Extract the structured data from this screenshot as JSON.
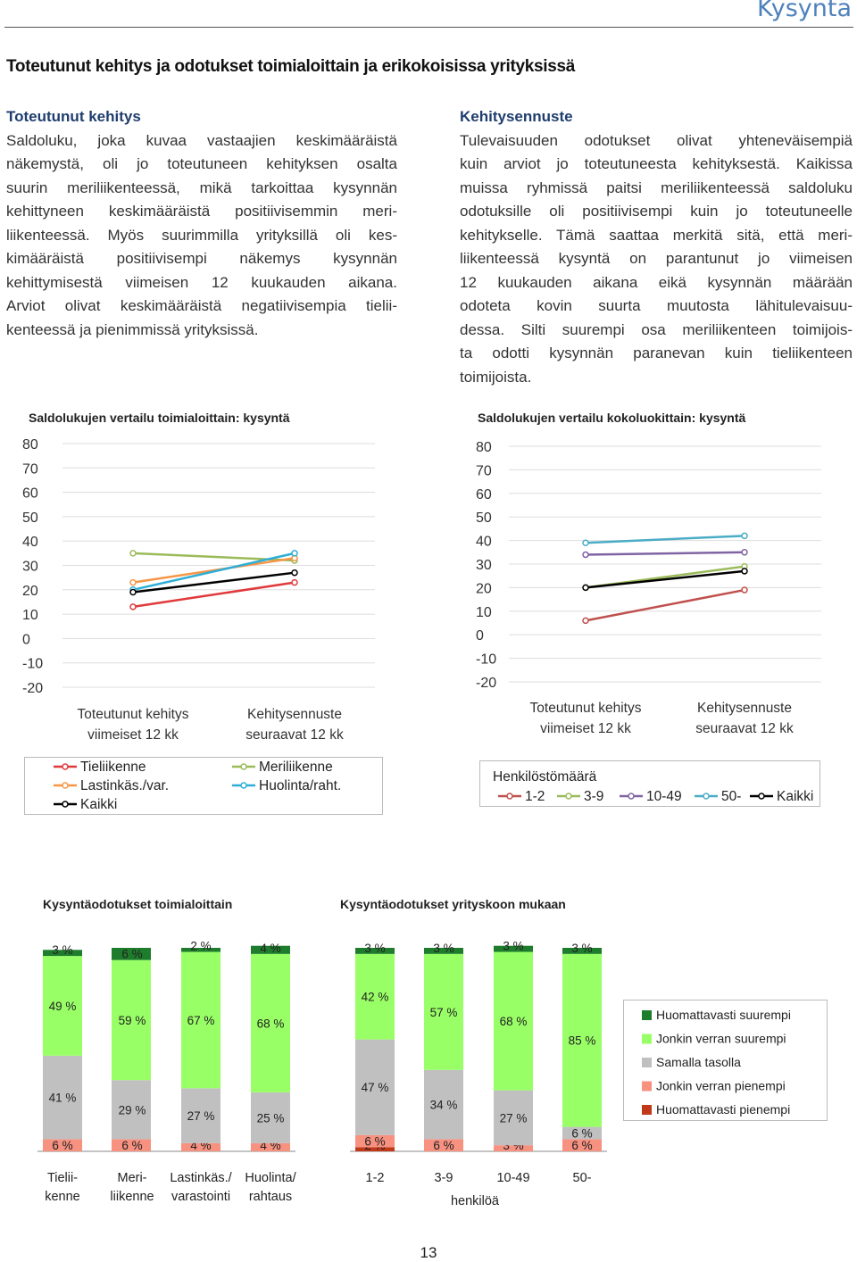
{
  "header": {
    "section": "Kysyntä"
  },
  "title": "Toteutunut kehitys ja odotukset toimialoittain ja erikokoisissa yrityksissä",
  "left_column": {
    "heading": "Toteutunut kehitys",
    "lines": [
      "Saldoluku, joka kuvaa vastaajien keskimääräistä",
      "näkemystä, oli jo toteutuneen kehityksen osalta",
      "suurin meriliikenteessä, mikä tarkoittaa kysynnän",
      "kehittyneen keskimääräistä positiivisemmin meri-",
      "liikenteessä. Myös suurimmilla yrityksillä oli kes-",
      "kimääräistä positiivisempi näkemys kysynnän",
      "kehittymisestä viimeisen 12 kuukauden aikana.",
      "Arviot olivat keskimääräistä negatiivisempia tielii-",
      "kenteessä ja pienimmissä yrityksissä."
    ]
  },
  "right_column": {
    "heading": "Kehitysennuste",
    "lines": [
      "Tulevaisuuden odotukset olivat yhteneväisempiä",
      "kuin arviot jo toteutuneesta kehityksestä. Kaikissa",
      "muissa ryhmissä paitsi meriliikenteessä saldoluku",
      "odotuksille oli positiivisempi kuin jo toteutuneelle",
      "kehitykselle. Tämä saattaa merkitä sitä, että meri-",
      "liikenteessä kysyntä on parantunut jo viimeisen",
      "12 kuukauden aikana eikä kysynnän määrään",
      "odoteta kovin suurta muutosta lähitulevaisuu-",
      "dessa. Silti suurempi osa meriliikenteen toimijois-",
      "ta odotti kysynnän paranevan kuin tieliikenteen",
      "toimijoista."
    ]
  },
  "chart_data": [
    {
      "type": "line",
      "title": "Saldolukujen vertailu toimialoittain: kysyntä",
      "categories": [
        [
          "Toteutunut kehitys",
          "viimeiset 12 kk"
        ],
        [
          "Kehitysennuste",
          "seuraavat 12 kk"
        ]
      ],
      "ylim": [
        -20,
        80
      ],
      "yticks": [
        "80",
        "70",
        "60",
        "50",
        "40",
        "30",
        "20",
        "10",
        "0",
        "-10",
        "-20"
      ],
      "series": [
        {
          "name": "Tieliikenne",
          "color": "#e0393b",
          "values": [
            13,
            23
          ]
        },
        {
          "name": "Meriliikenne",
          "color": "#9bbb59",
          "values": [
            35,
            32
          ]
        },
        {
          "name": "Lastinkäs./var.",
          "color": "#f79646",
          "values": [
            23,
            33
          ]
        },
        {
          "name": "Huolinta/raht.",
          "color": "#2eaed6",
          "values": [
            20,
            35
          ]
        },
        {
          "name": "Kaikki",
          "color": "#000000",
          "values": [
            19,
            27
          ]
        }
      ]
    },
    {
      "type": "line",
      "title": "Saldolukujen vertailu kokoluokittain: kysyntä",
      "categories": [
        [
          "Toteutunut kehitys",
          "viimeiset 12 kk"
        ],
        [
          "Kehitysennuste",
          "seuraavat 12 kk"
        ]
      ],
      "ylim": [
        -20,
        80
      ],
      "yticks": [
        "80",
        "70",
        "60",
        "50",
        "40",
        "30",
        "20",
        "10",
        "0",
        "-10",
        "-20"
      ],
      "legend_title": "Henkilöstömäärä",
      "series": [
        {
          "name": "1-2",
          "color": "#c0504d",
          "values": [
            6,
            19
          ]
        },
        {
          "name": "3-9",
          "color": "#9bbb59",
          "values": [
            20,
            29
          ]
        },
        {
          "name": "10-49",
          "color": "#8064a2",
          "values": [
            34,
            35
          ]
        },
        {
          "name": "50-",
          "color": "#4bacc6",
          "values": [
            39,
            42
          ]
        },
        {
          "name": "Kaikki",
          "color": "#000000",
          "values": [
            20,
            27
          ]
        }
      ]
    },
    {
      "type": "bar",
      "stacked": true,
      "title": "Kysyntäodotukset toimialoittain",
      "categories": [
        [
          "Tielii-",
          "kenne"
        ],
        [
          "Meri-",
          "liikenne"
        ],
        [
          "Lastinkäs./",
          "varastointi"
        ],
        [
          "Huolinta/",
          "rahtaus"
        ]
      ],
      "series": [
        {
          "name": "Huomattavasti pienempi",
          "values": [
            0,
            0,
            0,
            0
          ],
          "labels": [
            "",
            "",
            "",
            ""
          ]
        },
        {
          "name": "Jonkin verran pienempi",
          "values": [
            6,
            6,
            4,
            4
          ],
          "labels": [
            "6 %",
            "6 %",
            "4 %",
            "4 %"
          ]
        },
        {
          "name": "Samalla tasolla",
          "values": [
            41,
            29,
            27,
            25
          ],
          "labels": [
            "41 %",
            "29 %",
            "27 %",
            "25 %"
          ]
        },
        {
          "name": "Jonkin verran suurempi",
          "values": [
            49,
            59,
            67,
            68
          ],
          "labels": [
            "49 %",
            "59 %",
            "67 %",
            "68 %"
          ]
        },
        {
          "name": "Huomattavasti suurempi",
          "values": [
            3,
            6,
            2,
            4
          ],
          "labels": [
            "3 %",
            "6 %",
            "2 %",
            "4 %"
          ]
        }
      ]
    },
    {
      "type": "bar",
      "stacked": true,
      "title": "Kysyntäodotukset yrityskoon mukaan",
      "categories": [
        [
          "1-2"
        ],
        [
          "3-9"
        ],
        [
          "10-49"
        ],
        [
          "50-"
        ]
      ],
      "xlabel": "henkilöä",
      "series": [
        {
          "name": "Huomattavasti pienempi",
          "values": [
            2,
            0,
            0,
            0
          ],
          "labels": [
            "2 %",
            "",
            "",
            ""
          ]
        },
        {
          "name": "Jonkin verran pienempi",
          "values": [
            6,
            6,
            3,
            6
          ],
          "labels": [
            "6 %",
            "6 %",
            "3 %",
            "6 %"
          ]
        },
        {
          "name": "Samalla tasolla",
          "values": [
            47,
            34,
            27,
            6
          ],
          "labels": [
            "47 %",
            "34 %",
            "27 %",
            "6 %"
          ]
        },
        {
          "name": "Jonkin verran suurempi",
          "values": [
            42,
            57,
            68,
            85
          ],
          "labels": [
            "42 %",
            "57 %",
            "68 %",
            "85 %"
          ]
        },
        {
          "name": "Huomattavasti suurempi",
          "values": [
            3,
            3,
            3,
            3
          ],
          "labels": [
            "3 %",
            "3 %",
            "3 %",
            "3 %"
          ]
        }
      ]
    }
  ],
  "bar_legend": [
    {
      "label": "Huomattavasti suurempi",
      "color": "#1e7d2c"
    },
    {
      "label": "Jonkin verran suurempi",
      "color": "#99ff66"
    },
    {
      "label": "Samalla tasolla",
      "color": "#c0c0c0"
    },
    {
      "label": "Jonkin verran pienempi",
      "color": "#f79180"
    },
    {
      "label": "Huomattavasti pienempi",
      "color": "#c03a1a"
    }
  ],
  "page_number": "13"
}
